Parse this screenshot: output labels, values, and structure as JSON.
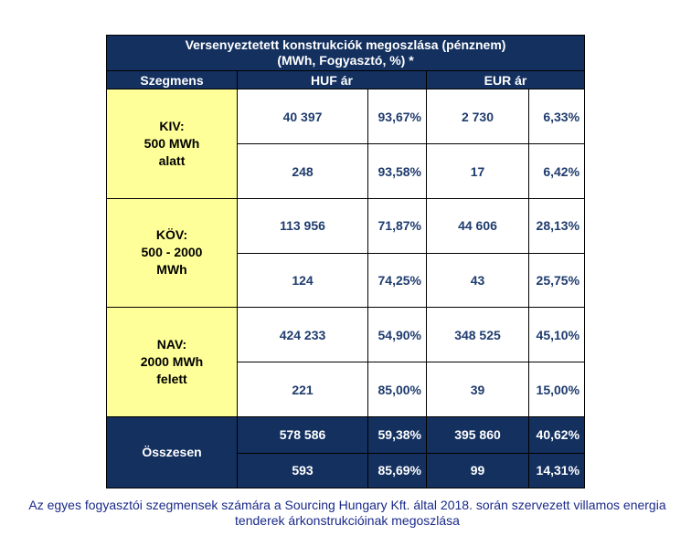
{
  "table": {
    "title_line1": "Versenyeztetett konstrukciók megoszlása (pénznem)",
    "title_line2": "(MWh, Fogyasztó, %) *",
    "col_segment": "Szegmens",
    "col_huf": "HUF ár",
    "col_eur": "EUR ár",
    "segments": [
      {
        "label1": "KIV:",
        "label2": "500 MWh",
        "label3": "alatt",
        "rows": [
          {
            "huf": "40 397",
            "huf_pct": "93,67%",
            "eur": "2 730",
            "eur_pct": "6,33%"
          },
          {
            "huf": "248",
            "huf_pct": "93,58%",
            "eur": "17",
            "eur_pct": "6,42%"
          }
        ]
      },
      {
        "label1": "KÖV:",
        "label2": "500 - 2000",
        "label3": "MWh",
        "rows": [
          {
            "huf": "113 956",
            "huf_pct": "71,87%",
            "eur": "44 606",
            "eur_pct": "28,13%"
          },
          {
            "huf": "124",
            "huf_pct": "74,25%",
            "eur": "43",
            "eur_pct": "25,75%"
          }
        ]
      },
      {
        "label1": "NAV:",
        "label2": "2000 MWh",
        "label3": "felett",
        "rows": [
          {
            "huf": "424 233",
            "huf_pct": "54,90%",
            "eur": "348 525",
            "eur_pct": "45,10%"
          },
          {
            "huf": "221",
            "huf_pct": "85,00%",
            "eur": "39",
            "eur_pct": "15,00%"
          }
        ]
      }
    ],
    "total": {
      "label": "Összesen",
      "rows": [
        {
          "huf": "578 586",
          "huf_pct": "59,38%",
          "eur": "395 860",
          "eur_pct": "40,62%"
        },
        {
          "huf": "593",
          "huf_pct": "85,69%",
          "eur": "99",
          "eur_pct": "14,31%"
        }
      ]
    }
  },
  "caption": {
    "line1": "Az egyes fogyasztói szegmensek számára a Sourcing Hungary Kft. által 2018. során szervezett villamos energia",
    "line2": "tenderek árkonstrukcióinak megoszlása"
  }
}
